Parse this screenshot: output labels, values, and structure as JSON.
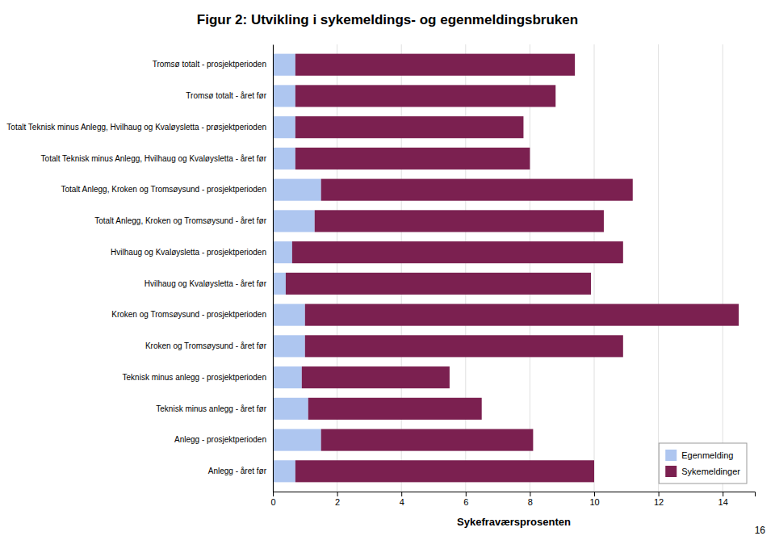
{
  "chart_data": {
    "type": "bar",
    "orientation": "horizontal",
    "stacked": true,
    "title": "Figur 2: Utvikling i sykemeldings- og egenmeldings­bruken",
    "xlabel": "Sykefraværsprosenten",
    "categories": [
      "Tromsø totalt - prosjektperioden",
      "Tromsø totalt - året før",
      "Totalt Teknisk minus Anlegg, Hvilhaug og Kvaløysletta - prøsjektperioden",
      "Totalt Teknisk minus Anlegg, Hvilhaug og Kvaløysletta - året før",
      "Totalt Anlegg, Kroken og Tromsøysund - prosjektperioden",
      "Totalt Anlegg, Kroken og Tromsøysund - året før",
      "Hvilhaug og Kvaløysletta - prosjektperioden",
      "Hvilhaug og Kvaløysletta - året før",
      "Kroken og Tromsøysund - prosjektperioden",
      "Kroken og Tromsøysund - året før",
      "Teknisk minus anlegg - prosjektperioden",
      "Teknisk minus anlegg - året før",
      "Anlegg - prosjektperioden",
      "Anlegg - året før"
    ],
    "series": [
      {
        "name": "Egenmelding",
        "color": "#aec6f0",
        "values": [
          0.7,
          0.7,
          0.7,
          0.7,
          1.5,
          1.3,
          0.6,
          0.4,
          1.0,
          1.0,
          0.9,
          1.1,
          1.5,
          0.7
        ]
      },
      {
        "name": "Sykemeldinger",
        "color": "#7b2050",
        "values": [
          8.7,
          8.1,
          7.1,
          7.3,
          9.7,
          9.0,
          10.3,
          9.5,
          13.5,
          9.9,
          4.6,
          5.4,
          6.6,
          9.3
        ]
      }
    ],
    "xlim": [
      0,
      15
    ],
    "xticks": [
      0,
      2,
      4,
      6,
      8,
      10,
      12,
      14
    ],
    "grid": true,
    "legend": "lower right",
    "annotations": [
      "16"
    ]
  }
}
